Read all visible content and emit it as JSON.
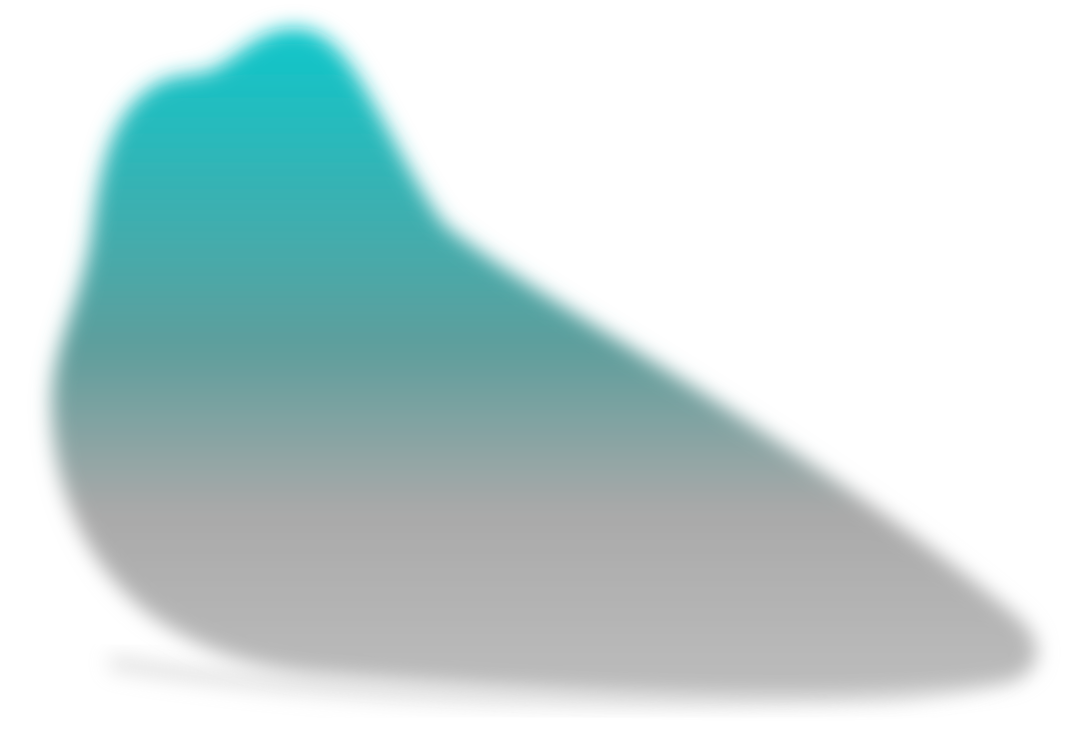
{
  "shape": {
    "description_colors": {
      "top": "#0ec7cb",
      "middle": "#5f9e9c",
      "lower": "#a9a9a9",
      "bottom": "#bdbdbd"
    },
    "background": "#ffffff"
  }
}
